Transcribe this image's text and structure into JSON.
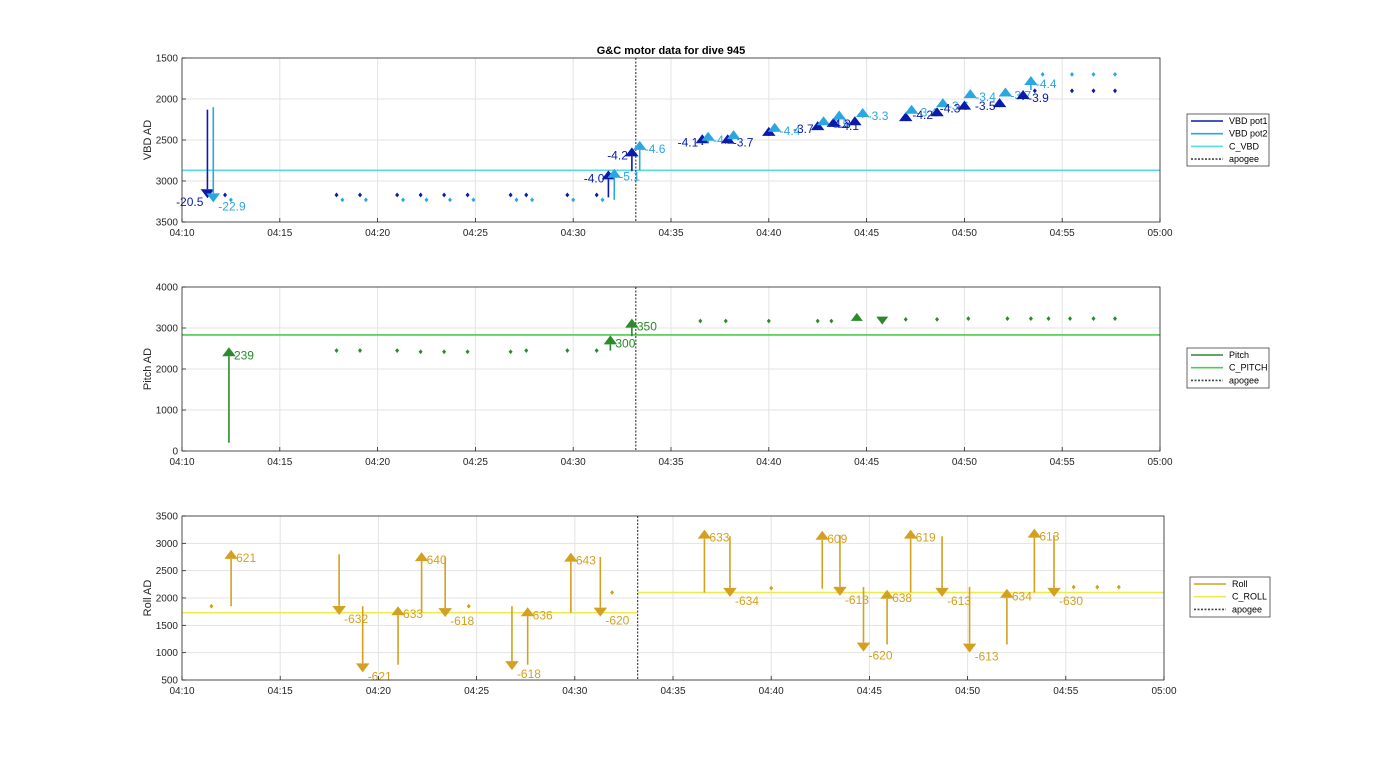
{
  "chart_data": [
    {
      "type": "line",
      "title": "G&C motor data for dive 945",
      "ylabel": "VBD AD",
      "y_reversed": true,
      "ylim": [
        1500,
        3500
      ],
      "yticks": [
        "1500",
        "2000",
        "2500",
        "3000",
        "3500"
      ],
      "xlim": [
        "04:10",
        "05:00"
      ],
      "xticks": [
        "04:10",
        "04:15",
        "04:20",
        "04:25",
        "04:30",
        "04:35",
        "04:40",
        "04:45",
        "04:50",
        "04:55",
        "05:00"
      ],
      "grid": true,
      "legend_position": "right",
      "legend": [
        {
          "name": "VBD pot1",
          "color": "#0a1bab",
          "style": "solid"
        },
        {
          "name": "VBD pot2",
          "color": "#2aa6e0",
          "style": "solid"
        },
        {
          "name": "C_VBD",
          "color": "#5ad8e6",
          "style": "solid"
        },
        {
          "name": "apogee",
          "color": "#444444",
          "style": "dotted"
        }
      ],
      "series": [
        {
          "name": "VBD pot1",
          "x": [
            "04:12.2",
            "04:17.9",
            "04:19.1",
            "04:21.0",
            "04:22.2",
            "04:23.4",
            "04:24.6",
            "04:26.8",
            "04:27.6",
            "04:29.7",
            "04:31.2",
            "04:53.6",
            "04:55.5",
            "04:56.6",
            "04:57.7"
          ],
          "y": [
            3170,
            3170,
            3170,
            3170,
            3170,
            3170,
            3170,
            3170,
            3170,
            3170,
            3170,
            1900,
            1900,
            1900,
            1900
          ]
        },
        {
          "name": "VBD pot2",
          "x": [
            "04:12.5",
            "04:18.2",
            "04:19.4",
            "04:21.3",
            "04:22.5",
            "04:23.7",
            "04:24.9",
            "04:27.1",
            "04:27.9",
            "04:30.0",
            "04:31.5",
            "04:54.0",
            "04:55.5",
            "04:56.6",
            "04:57.7"
          ],
          "y": [
            3230,
            3230,
            3230,
            3230,
            3230,
            3230,
            3230,
            3230,
            3230,
            3230,
            3230,
            1700,
            1700,
            1700,
            1700
          ]
        },
        {
          "name": "C_VBD",
          "const": 2870
        }
      ],
      "apogee": "04:33.2",
      "arrows": [
        {
          "x": "04:11.3",
          "from": 2130,
          "to": 3210,
          "color": "#0a1bab",
          "label": "-20.5",
          "label_side": "left"
        },
        {
          "x": "04:11.6",
          "from": 2100,
          "to": 3260,
          "color": "#2aa6e0",
          "label": "-22.9",
          "label_side": "right"
        },
        {
          "x": "04:31.8",
          "from": 3200,
          "to": 2870,
          "color": "#0a1bab",
          "label": "-4.0",
          "label_side": "left"
        },
        {
          "x": "04:32.1",
          "from": 3230,
          "to": 2850,
          "color": "#2aa6e0",
          "label": "-5.1",
          "label_side": "right"
        },
        {
          "x": "04:33.0",
          "from": 2880,
          "to": 2590,
          "color": "#0a1bab",
          "label": "-4.2",
          "label_side": "left"
        },
        {
          "x": "04:33.4",
          "from": 2870,
          "to": 2510,
          "color": "#2aa6e0",
          "label": "-4.6",
          "label_side": "right"
        },
        {
          "x": "04:36.6",
          "from": 2560,
          "to": 2430,
          "color": "#0a1bab",
          "label": "-4.1",
          "label_side": "left"
        },
        {
          "x": "04:36.9",
          "from": 2530,
          "to": 2400,
          "color": "#2aa6e0",
          "label": "-4.2",
          "label_side": "right"
        },
        {
          "x": "04:37.9",
          "from": 2520,
          "to": 2430,
          "color": "#0a1bab",
          "label": "-3.7",
          "label_side": "right"
        },
        {
          "x": "04:38.2",
          "from": 2460,
          "to": 2380,
          "color": "#2aa6e0",
          "label": "",
          "label_side": "right"
        },
        {
          "x": "04:40.0",
          "from": 2420,
          "to": 2340,
          "color": "#0a1bab",
          "label": "",
          "label_side": "right"
        },
        {
          "x": "04:40.3",
          "from": 2390,
          "to": 2290,
          "color": "#2aa6e0",
          "label": "-4.4",
          "label_side": "right"
        },
        {
          "x": "04:42.5",
          "from": 2380,
          "to": 2270,
          "color": "#0a1bab",
          "label": "-3.7",
          "label_side": "left"
        },
        {
          "x": "04:42.8",
          "from": 2310,
          "to": 2210,
          "color": "#2aa6e0",
          "label": "-3.5",
          "label_side": "right"
        },
        {
          "x": "04:43.3",
          "from": 2310,
          "to": 2230,
          "color": "#0a1bab",
          "label": "-4.1",
          "label_side": "right"
        },
        {
          "x": "04:43.6",
          "from": 2230,
          "to": 2140,
          "color": "#2aa6e0",
          "label": "",
          "label_side": "right"
        },
        {
          "x": "04:44.4",
          "from": 2290,
          "to": 2210,
          "color": "#0a1bab",
          "label": "-4.3",
          "label_side": "left"
        },
        {
          "x": "04:44.8",
          "from": 2230,
          "to": 2110,
          "color": "#2aa6e0",
          "label": "-3.3",
          "label_side": "right"
        },
        {
          "x": "04:47.0",
          "from": 2240,
          "to": 2160,
          "color": "#0a1bab",
          "label": "",
          "label_side": "right"
        },
        {
          "x": "04:47.3",
          "from": 2180,
          "to": 2070,
          "color": "#2aa6e0",
          "label": "-3.4",
          "label_side": "right"
        },
        {
          "x": "04:48.6",
          "from": 2180,
          "to": 2100,
          "color": "#0a1bab",
          "label": "-4.2",
          "label_side": "left"
        },
        {
          "x": "04:48.9",
          "from": 2080,
          "to": 1990,
          "color": "#2aa6e0",
          "label": "-3.6",
          "label_side": "right"
        },
        {
          "x": "04:50.0",
          "from": 2130,
          "to": 2020,
          "color": "#0a1bab",
          "label": "-4.3",
          "label_side": "left"
        },
        {
          "x": "04:50.3",
          "from": 1990,
          "to": 1880,
          "color": "#2aa6e0",
          "label": "-3.4",
          "label_side": "right"
        },
        {
          "x": "04:51.8",
          "from": 2060,
          "to": 1990,
          "color": "#0a1bab",
          "label": "-3.5",
          "label_side": "left"
        },
        {
          "x": "04:52.1",
          "from": 1950,
          "to": 1860,
          "color": "#2aa6e0",
          "label": "-3.7",
          "label_side": "right"
        },
        {
          "x": "04:53.0",
          "from": 2010,
          "to": 1890,
          "color": "#0a1bab",
          "label": "-3.9",
          "label_side": "right"
        },
        {
          "x": "04:53.4",
          "from": 1890,
          "to": 1720,
          "color": "#2aa6e0",
          "label": "-4.4",
          "label_side": "right"
        }
      ]
    },
    {
      "type": "line",
      "ylabel": "Pitch AD",
      "ylim": [
        0,
        4000
      ],
      "yticks": [
        "0",
        "1000",
        "2000",
        "3000",
        "4000"
      ],
      "xlim": [
        "04:10",
        "05:00"
      ],
      "xticks": [
        "04:10",
        "04:15",
        "04:20",
        "04:25",
        "04:30",
        "04:35",
        "04:40",
        "04:45",
        "04:50",
        "04:55",
        "05:00"
      ],
      "grid": true,
      "legend_position": "right",
      "legend": [
        {
          "name": "Pitch",
          "color": "#2c8a2c",
          "style": "solid"
        },
        {
          "name": "C_PITCH",
          "color": "#4dcc4d",
          "style": "solid"
        },
        {
          "name": "apogee",
          "color": "#444444",
          "style": "dotted"
        }
      ],
      "series": [
        {
          "name": "Pitch",
          "x": [
            "04:17.9",
            "04:19.1",
            "04:21.0",
            "04:22.2",
            "04:23.4",
            "04:24.6",
            "04:26.8",
            "04:27.6",
            "04:29.7",
            "04:31.2",
            "04:36.5",
            "04:37.8",
            "04:40.0",
            "04:42.5",
            "04:43.2",
            "04:47.0",
            "04:48.6",
            "04:50.2",
            "04:52.2",
            "04:53.4",
            "04:54.3",
            "04:55.4",
            "04:56.6",
            "04:57.7"
          ],
          "y": [
            2450,
            2450,
            2450,
            2420,
            2420,
            2420,
            2420,
            2450,
            2450,
            2450,
            3170,
            3170,
            3170,
            3170,
            3170,
            3210,
            3210,
            3230,
            3230,
            3230,
            3230,
            3230,
            3230,
            3230
          ]
        },
        {
          "name": "C_PITCH",
          "const": 2830
        }
      ],
      "apogee": "04:33.2",
      "markers": [
        {
          "x": "04:44.5",
          "y": 3270,
          "dir": "up"
        },
        {
          "x": "04:45.8",
          "y": 3180,
          "dir": "down"
        }
      ],
      "arrows": [
        {
          "x": "04:12.4",
          "from": 200,
          "to": 2530,
          "color": "#2c8a2c",
          "label": "239",
          "label_side": "right"
        },
        {
          "x": "04:31.9",
          "from": 2450,
          "to": 2820,
          "color": "#2c8a2c",
          "label": "300",
          "label_side": "right"
        },
        {
          "x": "04:33.0",
          "from": 2800,
          "to": 3230,
          "color": "#2c8a2c",
          "label": "350",
          "label_side": "right"
        }
      ]
    },
    {
      "type": "line",
      "ylabel": "Roll AD",
      "ylim": [
        500,
        3500
      ],
      "yticks": [
        "500",
        "1000",
        "1500",
        "2000",
        "2500",
        "3000",
        "3500"
      ],
      "xlim": [
        "04:10",
        "05:00"
      ],
      "xticks": [
        "04:10",
        "04:15",
        "04:20",
        "04:25",
        "04:30",
        "04:35",
        "04:40",
        "04:45",
        "04:50",
        "04:55",
        "05:00"
      ],
      "grid": true,
      "legend_position": "right",
      "legend": [
        {
          "name": "Roll",
          "color": "#d4a020",
          "style": "solid"
        },
        {
          "name": "C_ROLL",
          "color": "#f0e850",
          "style": "solid"
        },
        {
          "name": "apogee",
          "color": "#444444",
          "style": "dotted"
        }
      ],
      "series": [
        {
          "name": "Roll",
          "x": [
            "04:11.5",
            "04:24.6",
            "04:31.9",
            "04:40.0",
            "04:55.4",
            "04:56.6",
            "04:57.7"
          ],
          "y": [
            1850,
            1850,
            2100,
            2180,
            2200,
            2200,
            2200
          ]
        },
        {
          "name": "C_ROLL",
          "segments": [
            {
              "from": "04:10",
              "to": "04:33.2",
              "y": 1730
            },
            {
              "from": "04:33.2",
              "to": "05:00",
              "y": 2100
            }
          ]
        }
      ],
      "apogee": "04:33.2",
      "arrows": [
        {
          "x": "04:12.5",
          "from": 1850,
          "to": 2880,
          "color": "#d4a020",
          "label": "621",
          "label_side": "right"
        },
        {
          "x": "04:18.0",
          "from": 2800,
          "to": 1690,
          "color": "#d4a020",
          "label": "-632",
          "label_side": "right"
        },
        {
          "x": "04:19.2",
          "from": 1850,
          "to": 640,
          "color": "#d4a020",
          "label": "-621",
          "label_side": "right"
        },
        {
          "x": "04:21.0",
          "from": 780,
          "to": 1850,
          "color": "#d4a020",
          "label": "633",
          "label_side": "right"
        },
        {
          "x": "04:22.2",
          "from": 1730,
          "to": 2840,
          "color": "#d4a020",
          "label": "640",
          "label_side": "right"
        },
        {
          "x": "04:23.4",
          "from": 2750,
          "to": 1650,
          "color": "#d4a020",
          "label": "-618",
          "label_side": "right"
        },
        {
          "x": "04:26.8",
          "from": 1850,
          "to": 680,
          "color": "#d4a020",
          "label": "-618",
          "label_side": "right"
        },
        {
          "x": "04:27.6",
          "from": 780,
          "to": 1830,
          "color": "#d4a020",
          "label": "636",
          "label_side": "right"
        },
        {
          "x": "04:29.8",
          "from": 1730,
          "to": 2830,
          "color": "#d4a020",
          "label": "643",
          "label_side": "right"
        },
        {
          "x": "04:31.3",
          "from": 2750,
          "to": 1660,
          "color": "#d4a020",
          "label": "-620",
          "label_side": "right"
        },
        {
          "x": "04:36.6",
          "from": 2100,
          "to": 3250,
          "color": "#d4a020",
          "label": "633",
          "label_side": "right"
        },
        {
          "x": "04:37.9",
          "from": 3130,
          "to": 2020,
          "color": "#d4a020",
          "label": "-634",
          "label_side": "right"
        },
        {
          "x": "04:42.6",
          "from": 2170,
          "to": 3230,
          "color": "#d4a020",
          "label": "609",
          "label_side": "right"
        },
        {
          "x": "04:43.5",
          "from": 3150,
          "to": 2040,
          "color": "#d4a020",
          "label": "-613",
          "label_side": "right"
        },
        {
          "x": "04:44.7",
          "from": 2200,
          "to": 1020,
          "color": "#d4a020",
          "label": "-620",
          "label_side": "right"
        },
        {
          "x": "04:45.9",
          "from": 1150,
          "to": 2150,
          "color": "#d4a020",
          "label": "638",
          "label_side": "right"
        },
        {
          "x": "04:47.1",
          "from": 2100,
          "to": 3250,
          "color": "#d4a020",
          "label": "619",
          "label_side": "right"
        },
        {
          "x": "04:48.7",
          "from": 3130,
          "to": 2020,
          "color": "#d4a020",
          "label": "-613",
          "label_side": "right"
        },
        {
          "x": "04:50.1",
          "from": 2200,
          "to": 1000,
          "color": "#d4a020",
          "label": "-613",
          "label_side": "right"
        },
        {
          "x": "04:52.0",
          "from": 1150,
          "to": 2170,
          "color": "#d4a020",
          "label": "634",
          "label_side": "right"
        },
        {
          "x": "04:53.4",
          "from": 2100,
          "to": 3270,
          "color": "#d4a020",
          "label": "613",
          "label_side": "right"
        },
        {
          "x": "04:54.4",
          "from": 3150,
          "to": 2020,
          "color": "#d4a020",
          "label": "-630",
          "label_side": "right"
        }
      ]
    }
  ]
}
